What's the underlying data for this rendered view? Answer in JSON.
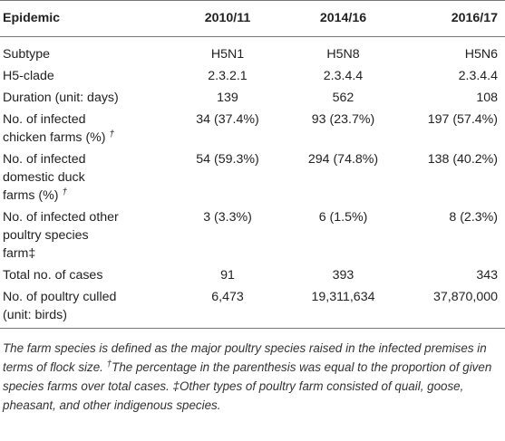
{
  "table": {
    "headers": [
      "Epidemic",
      "2010/11",
      "2014/16",
      "2016/17"
    ],
    "rows": [
      {
        "label": "Subtype",
        "values": [
          "H5N1",
          "H5N8",
          "H5N6"
        ]
      },
      {
        "label": "H5-clade",
        "values": [
          "2.3.2.1",
          "2.3.4.4",
          "2.3.4.4"
        ]
      },
      {
        "label": "Duration (unit: days)",
        "values": [
          "139",
          "562",
          "108"
        ]
      },
      {
        "label_line1": "No. of infected",
        "label_line2": "chicken farms (%)",
        "mark": "†",
        "values": [
          "34 (37.4%)",
          "93 (23.7%)",
          "197 (57.4%)"
        ]
      },
      {
        "label_line1": "No. of infected",
        "label_line2": "domestic duck",
        "label_line3": "farms (%)",
        "mark": "†",
        "values": [
          "54 (59.3%)",
          "294 (74.8%)",
          "138 (40.2%)"
        ]
      },
      {
        "label_line1": "No. of infected other",
        "label_line2": "poultry species",
        "label_line3": "farm‡",
        "values": [
          "3 (3.3%)",
          "6 (1.5%)",
          "8 (2.3%)"
        ]
      },
      {
        "label": "Total no. of cases",
        "values": [
          "91",
          "393",
          "343"
        ]
      },
      {
        "label_line1": "No. of poultry culled",
        "label_line2": "(unit: birds)",
        "values": [
          "6,473",
          "19,311,634",
          "37,870,000"
        ]
      }
    ]
  },
  "footnote": {
    "part1": "The farm species is defined as the major poultry species raised in the infected premises in terms of flock size.",
    "mark": "†",
    "part2": "The percentage in the parenthesis was equal to the proportion of given species farms over total cases. ‡Other types of poultry farm consisted of quail, goose, pheasant, and other indigenous species."
  }
}
